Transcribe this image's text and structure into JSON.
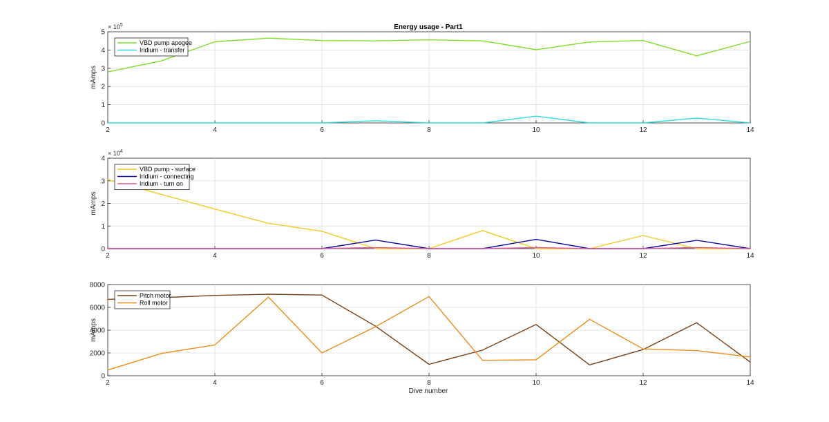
{
  "figure_title": "Energy usage - Part1",
  "xlabel": "Dive number",
  "chart_data": [
    {
      "type": "line",
      "title": "Energy usage - Part1",
      "xlabel": "",
      "ylabel": "mAmps",
      "exponent_label": "× 10^5",
      "exponent_base": "× 10",
      "exponent_power": "5",
      "scale": 100000,
      "xlim": [
        2,
        14
      ],
      "ylim": [
        0,
        500000
      ],
      "xticks": [
        2,
        4,
        6,
        8,
        10,
        12,
        14
      ],
      "yticks": [
        0,
        100000,
        200000,
        300000,
        400000,
        500000
      ],
      "ytick_labels": [
        "0",
        "1",
        "2",
        "3",
        "4",
        "5"
      ],
      "grid": true,
      "legend_location": "top-left",
      "x": [
        2,
        3,
        4,
        5,
        6,
        7,
        8,
        9,
        10,
        11,
        12,
        13,
        14
      ],
      "series": [
        {
          "name": "VBD pump apogee",
          "color": "#7fdd2a",
          "values": [
            280000,
            340000,
            445000,
            465000,
            452000,
            450000,
            456000,
            450000,
            402000,
            444000,
            452000,
            368000,
            447000
          ]
        },
        {
          "name": "Iridium - transfer",
          "color": "#33d6d6",
          "values": [
            0,
            0,
            0,
            0,
            0,
            12000,
            0,
            0,
            37000,
            0,
            0,
            27000,
            0
          ]
        }
      ]
    },
    {
      "type": "line",
      "title": "",
      "xlabel": "",
      "ylabel": "mAmps",
      "exponent_label": "× 10^4",
      "exponent_base": "× 10",
      "exponent_power": "4",
      "scale": 10000,
      "xlim": [
        2,
        14
      ],
      "ylim": [
        0,
        40000
      ],
      "xticks": [
        2,
        4,
        6,
        8,
        10,
        12,
        14
      ],
      "yticks": [
        0,
        10000,
        20000,
        30000,
        40000
      ],
      "ytick_labels": [
        "0",
        "1",
        "2",
        "3",
        "4"
      ],
      "grid": true,
      "legend_location": "top-left",
      "x": [
        2,
        3,
        4,
        5,
        6,
        7,
        8,
        9,
        10,
        11,
        12,
        13,
        14
      ],
      "series": [
        {
          "name": "VBD pump - surface",
          "color": "#f2c823",
          "values": [
            30500,
            24000,
            17500,
            11200,
            7700,
            0,
            0,
            8000,
            0,
            0,
            5800,
            0,
            0
          ]
        },
        {
          "name": "Iridium - connecting",
          "color": "#0a0aa0",
          "values": [
            0,
            0,
            0,
            0,
            0,
            3800,
            0,
            0,
            4100,
            0,
            0,
            3700,
            0
          ]
        },
        {
          "name": "Iridium - turn on",
          "color": "#e0569a",
          "values": [
            0,
            0,
            0,
            0,
            0,
            500,
            0,
            0,
            500,
            0,
            0,
            500,
            0
          ]
        }
      ]
    },
    {
      "type": "line",
      "title": "",
      "xlabel": "Dive number",
      "ylabel": "mAmps",
      "scale": 1,
      "xlim": [
        2,
        14
      ],
      "ylim": [
        0,
        8000
      ],
      "xticks": [
        2,
        4,
        6,
        8,
        10,
        12,
        14
      ],
      "yticks": [
        0,
        2000,
        4000,
        6000,
        8000
      ],
      "ytick_labels": [
        "0",
        "2000",
        "4000",
        "6000",
        "8000"
      ],
      "grid": true,
      "legend_location": "top-left",
      "x": [
        2,
        3,
        4,
        5,
        6,
        7,
        8,
        9,
        10,
        11,
        12,
        13,
        14
      ],
      "series": [
        {
          "name": "Pitch motor",
          "color": "#7a4012",
          "values": [
            6700,
            6850,
            7050,
            7150,
            7080,
            4350,
            1000,
            2250,
            4500,
            950,
            2300,
            4650,
            1200
          ]
        },
        {
          "name": "Roll motor",
          "color": "#ec8c1a",
          "values": [
            500,
            1950,
            2700,
            6900,
            2000,
            4300,
            6950,
            1350,
            1400,
            4950,
            2350,
            2200,
            1650
          ]
        }
      ]
    }
  ]
}
